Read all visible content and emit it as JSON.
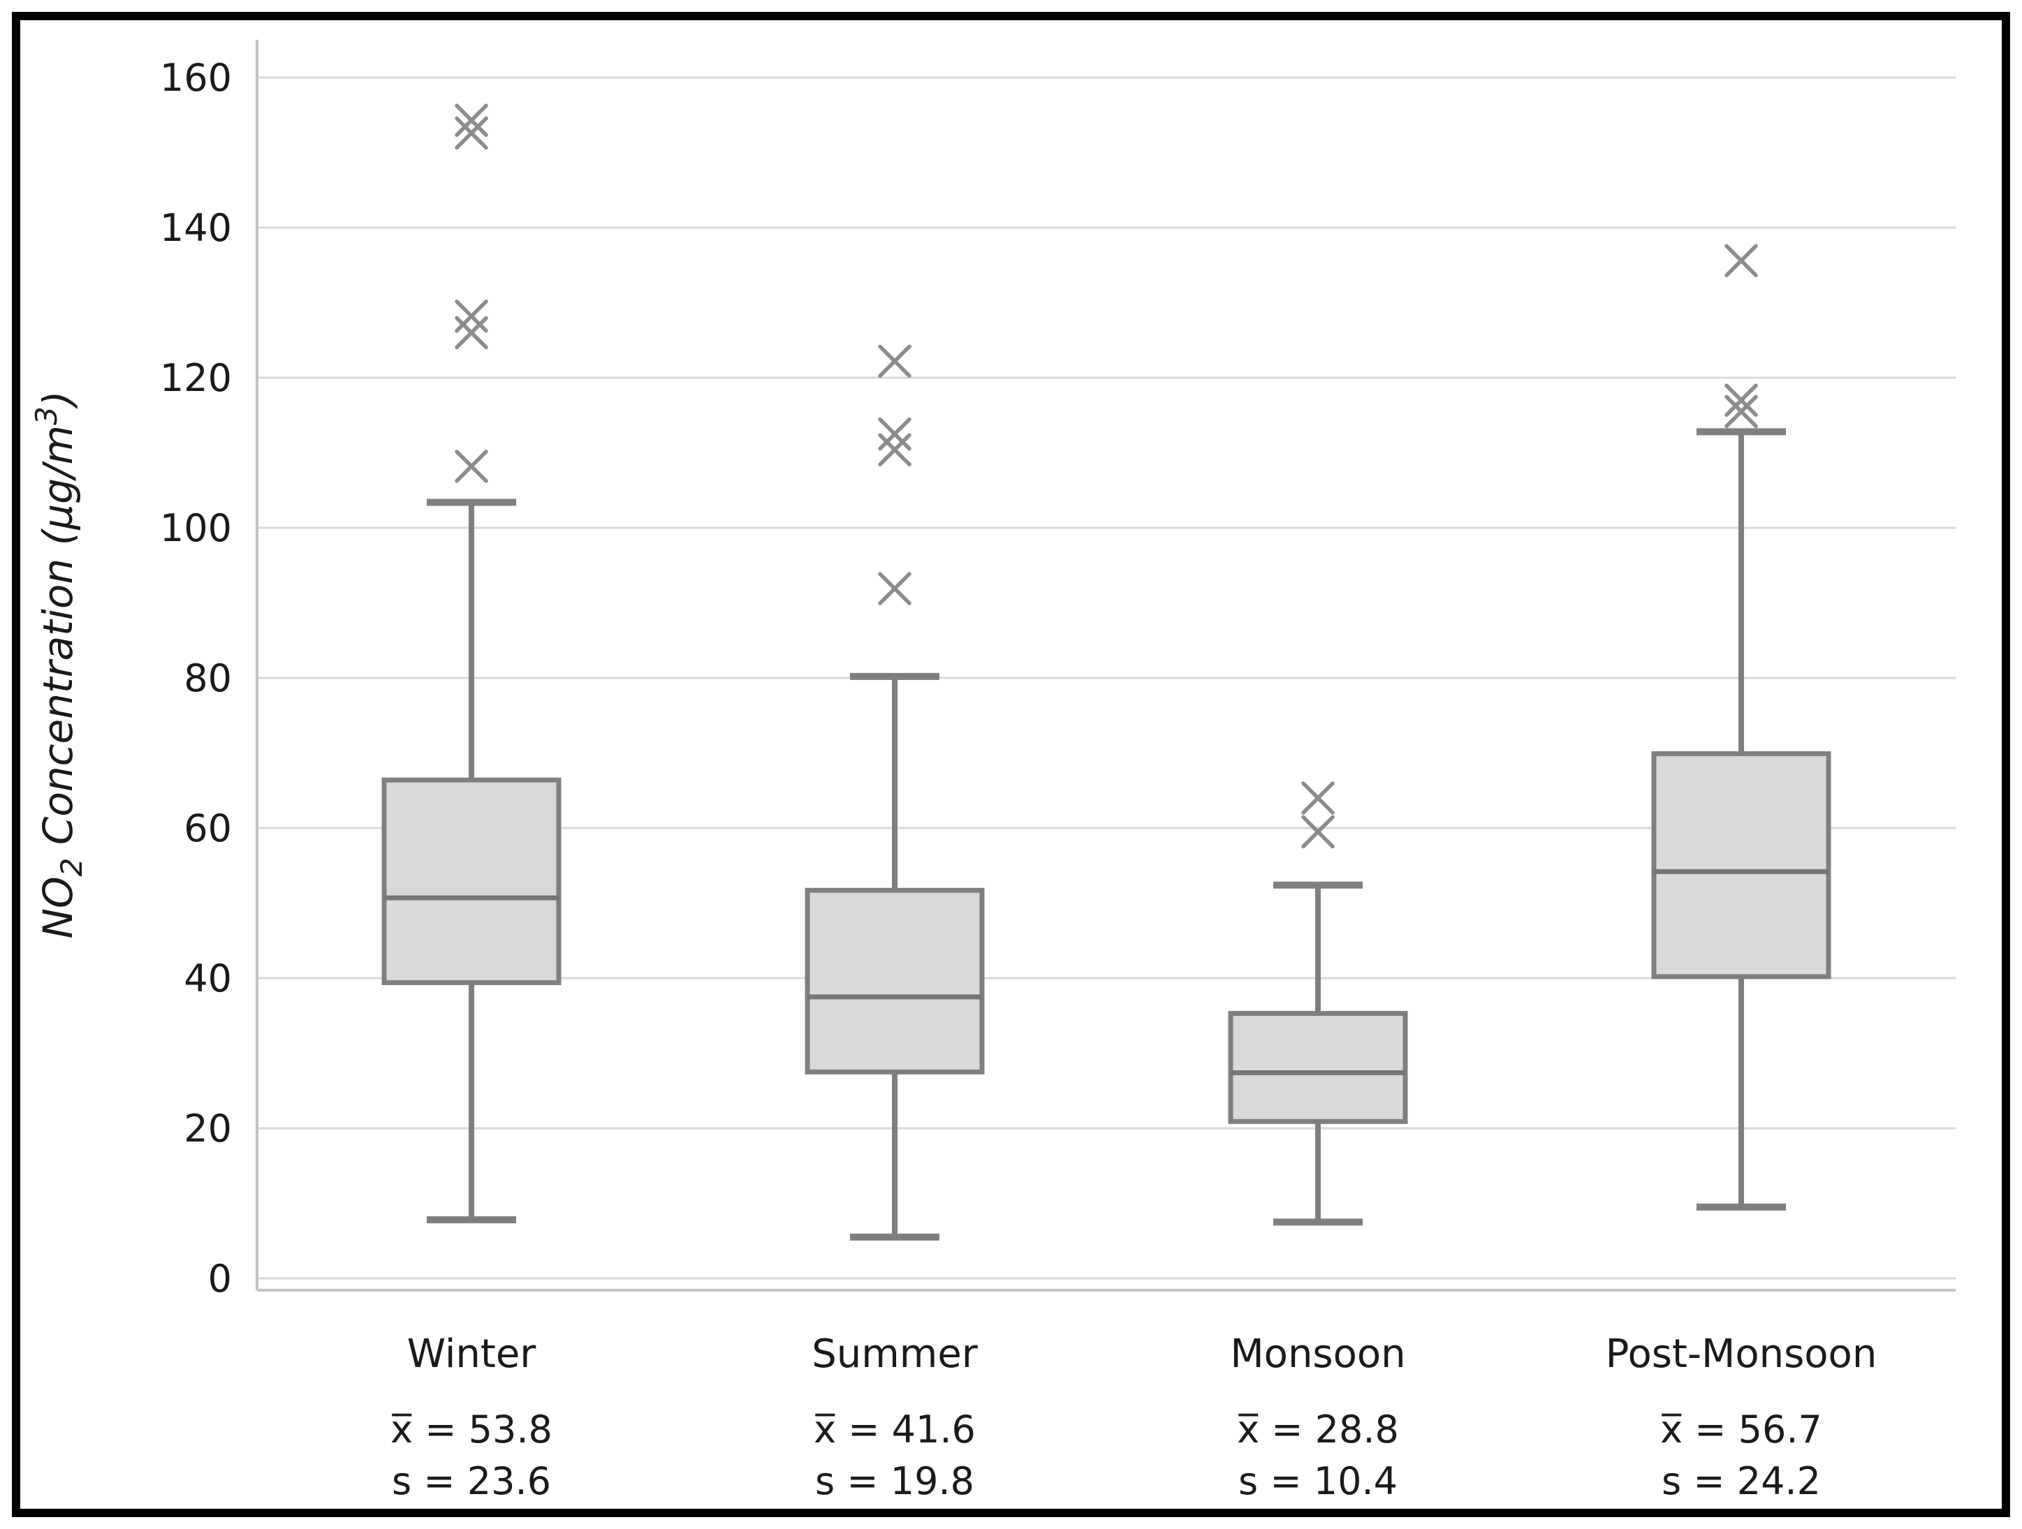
{
  "colors": {
    "background": "#ffffff",
    "frame": "#000000",
    "gridline": "#d9d9d9",
    "spine": "#c4c4c4",
    "box_fill": "#d9d9d9",
    "box_edge": "#7f7f7f",
    "median": "#757575",
    "whisker": "#7f7f7f",
    "outlier": "#8c8c8c",
    "text": "#1a1a1a"
  },
  "chart_data": {
    "type": "box",
    "title": "",
    "xlabel": "",
    "ylabel": "NO₂ Concentration (µg/m³)",
    "ylabel_parts": [
      {
        "t": "NO",
        "shift": "none"
      },
      {
        "t": "2",
        "shift": "sub"
      },
      {
        "t": " Concentration (µg/m",
        "shift": "none"
      },
      {
        "t": "3",
        "shift": "sup"
      },
      {
        "t": ")",
        "shift": "none"
      }
    ],
    "ylim": [
      0,
      165
    ],
    "yticks": [
      0,
      20,
      40,
      60,
      80,
      100,
      120,
      140,
      160
    ],
    "grid": "horizontal",
    "legend": "none",
    "marker": "x-cross",
    "categories": [
      "Winter",
      "Summer",
      "Monsoon",
      "Post-Monsoon"
    ],
    "series": [
      {
        "name": "Winter",
        "whisker_low": 7.8,
        "q1": 39.4,
        "median": 50.7,
        "q3": 66.4,
        "whisker_high": 103.4,
        "outliers": [
          108.2,
          126.0,
          128.2,
          152.6,
          154.3
        ],
        "mean": 53.8,
        "sd": 23.6,
        "mean_label": "x̅ = 53.8",
        "sd_label": "s = 23.6"
      },
      {
        "name": "Summer",
        "whisker_low": 5.5,
        "q1": 27.5,
        "median": 37.5,
        "q3": 51.7,
        "whisker_high": 80.2,
        "outliers": [
          91.9,
          110.4,
          112.5,
          122.2
        ],
        "mean": 41.6,
        "sd": 19.8,
        "mean_label": "x̅ = 41.6",
        "sd_label": "s = 19.8"
      },
      {
        "name": "Monsoon",
        "whisker_low": 7.5,
        "q1": 20.9,
        "median": 27.4,
        "q3": 35.3,
        "whisker_high": 52.4,
        "outliers": [
          59.5,
          64.0
        ],
        "mean": 28.8,
        "sd": 10.4,
        "mean_label": "x̅ = 28.8",
        "sd_label": "s = 10.4"
      },
      {
        "name": "Post-Monsoon",
        "whisker_low": 9.5,
        "q1": 40.2,
        "median": 54.2,
        "q3": 69.9,
        "whisker_high": 112.8,
        "outliers": [
          115.5,
          117.0,
          135.6
        ],
        "mean": 56.7,
        "sd": 24.2,
        "mean_label": "x̅ = 56.7",
        "sd_label": "s = 24.2"
      }
    ]
  }
}
